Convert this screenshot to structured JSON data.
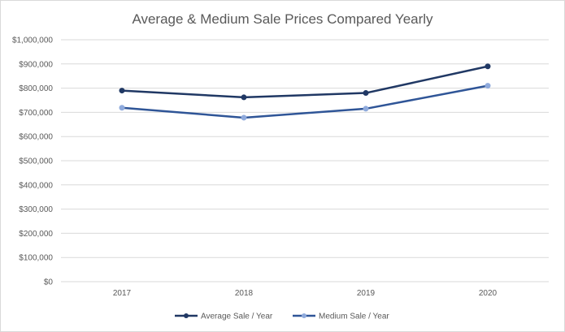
{
  "chart_data": {
    "type": "line",
    "title": "Average & Medium Sale Prices Compared Yearly",
    "xlabel": "",
    "ylabel": "",
    "categories": [
      "2017",
      "2018",
      "2019",
      "2020"
    ],
    "ylim": [
      0,
      1000000
    ],
    "yticks": [
      0,
      100000,
      200000,
      300000,
      400000,
      500000,
      600000,
      700000,
      800000,
      900000,
      1000000
    ],
    "ytick_labels": [
      "$0",
      "$100,000",
      "$200,000",
      "$300,000",
      "$400,000",
      "$500,000",
      "$600,000",
      "$700,000",
      "$800,000",
      "$900,000",
      "$1,000,000"
    ],
    "grid": true,
    "legend_position": "bottom",
    "series": [
      {
        "name": "Average Sale / Year",
        "values": [
          790000,
          762000,
          780000,
          890000
        ],
        "color": "#203864"
      },
      {
        "name": "Medium Sale / Year",
        "values": [
          719000,
          678000,
          715000,
          810000
        ],
        "color": "#2f5597",
        "marker_color": "#8faadc"
      }
    ]
  }
}
